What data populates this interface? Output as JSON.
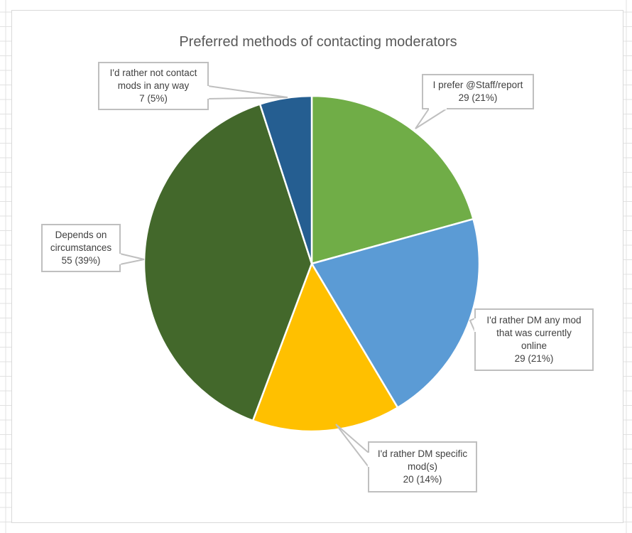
{
  "chart_data": {
    "type": "pie",
    "title": "Preferred methods of contacting moderators",
    "slices": [
      {
        "label_lines": [
          "I prefer @Staff/report"
        ],
        "value_text": "29 (21%)",
        "value": 29,
        "percent": 21,
        "color": "#70ad47"
      },
      {
        "label_lines": [
          "I'd rather DM any mod",
          "that was currently",
          "online"
        ],
        "value_text": "29 (21%)",
        "value": 29,
        "percent": 21,
        "color": "#5b9bd5"
      },
      {
        "label_lines": [
          "I'd rather DM specific",
          "mod(s)"
        ],
        "value_text": "20 (14%)",
        "value": 20,
        "percent": 14,
        "color": "#ffc000"
      },
      {
        "label_lines": [
          "Depends on",
          "circumstances"
        ],
        "value_text": "55 (39%)",
        "value": 55,
        "percent": 39,
        "color": "#43682b"
      },
      {
        "label_lines": [
          "I'd rather not contact",
          "mods in any way"
        ],
        "value_text": "7 (5%)",
        "value": 7,
        "percent": 5,
        "color": "#255e91"
      }
    ],
    "legend": "none",
    "data_labels": "callouts"
  }
}
